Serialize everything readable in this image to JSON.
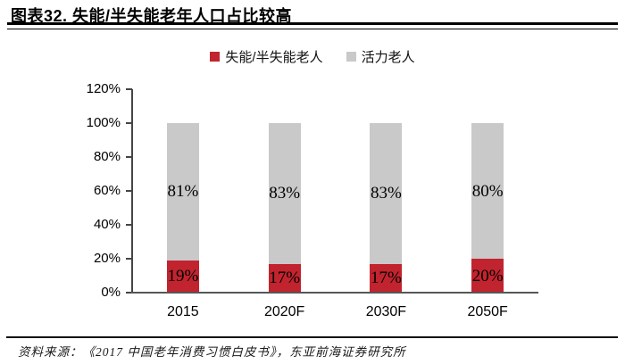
{
  "header": {
    "title": "图表32. 失能/半失能老年人口占比较高"
  },
  "chart_data": {
    "type": "bar",
    "stacked": true,
    "title": "失能/半失能老年人口占比较高",
    "categories": [
      "2015",
      "2020F",
      "2030F",
      "2050F"
    ],
    "series": [
      {
        "name": "失能/半失能老人",
        "color": "#c1242e",
        "values": [
          19,
          17,
          17,
          20
        ],
        "data_labels": [
          "19%",
          "17%",
          "17%",
          "20%"
        ]
      },
      {
        "name": "活力老人",
        "color": "#c9c9c9",
        "values": [
          81,
          83,
          83,
          80
        ],
        "data_labels": [
          "81%",
          "83%",
          "83%",
          "80%"
        ]
      }
    ],
    "xlabel": "",
    "ylabel": "",
    "ylim": [
      0,
      120
    ],
    "ytick_step": 20,
    "ytick_labels": [
      "0%",
      "20%",
      "40%",
      "60%",
      "80%",
      "100%",
      "120%"
    ],
    "grid": false,
    "legend_position": "top-center",
    "axis_color": "#454545",
    "data_label_color": "#000000"
  },
  "footer": {
    "source": "资料来源：《2017 中国老年消费习惯白皮书》，东亚前海证券研究所"
  }
}
